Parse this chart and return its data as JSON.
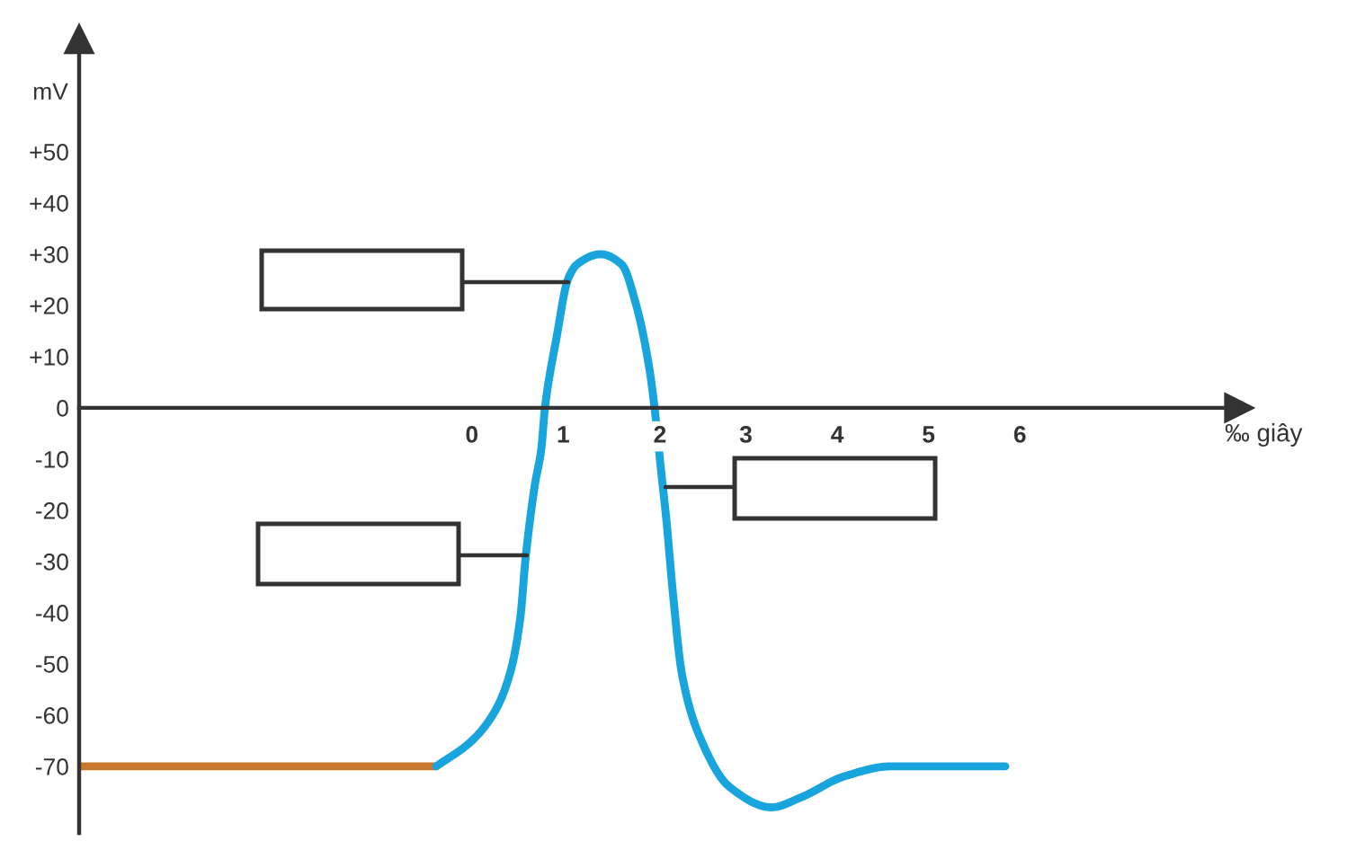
{
  "chart_data": {
    "type": "line",
    "xlabel": "‰ giây",
    "ylabel": "mV",
    "series": [
      {
        "color": "#c8782c",
        "x": [
          -4.3,
          -0.39
        ],
        "values": [
          -70,
          -70
        ]
      },
      {
        "color": "#18a4dc",
        "x": [
          -0.39,
          0,
          0.26,
          0.43,
          0.53,
          0.59,
          0.69,
          0.76,
          0.8,
          0.93,
          1.05,
          1.15,
          1.41,
          1.64,
          1.8,
          1.94,
          2.0,
          2.07,
          2.13,
          2.2,
          2.3,
          2.49,
          2.82,
          3.28,
          3.61,
          4.07,
          4.59,
          5.05,
          5.84
        ],
        "values": [
          -70,
          -65,
          -59,
          -51,
          -41,
          -29,
          -15,
          -8,
          0,
          14,
          25,
          28,
          30,
          28,
          20,
          8,
          0,
          -12,
          -22,
          -36,
          -52,
          -64,
          -74,
          -78,
          -76,
          -72,
          -70,
          -70,
          -70
        ]
      }
    ],
    "xlim": [
      -4.3,
      8.4
    ],
    "ylim": [
      -83,
      72
    ],
    "xticks": [
      0,
      1,
      2,
      3,
      4,
      5,
      6
    ],
    "yticks": [
      {
        "value": 50,
        "label": "+50"
      },
      {
        "value": 40,
        "label": "+40"
      },
      {
        "value": 30,
        "label": "+30"
      },
      {
        "value": 20,
        "label": "+20"
      },
      {
        "value": 10,
        "label": "+10"
      },
      0,
      -10,
      -20,
      -30,
      -40,
      -50,
      -60,
      -70
    ],
    "line_style": "solid"
  }
}
